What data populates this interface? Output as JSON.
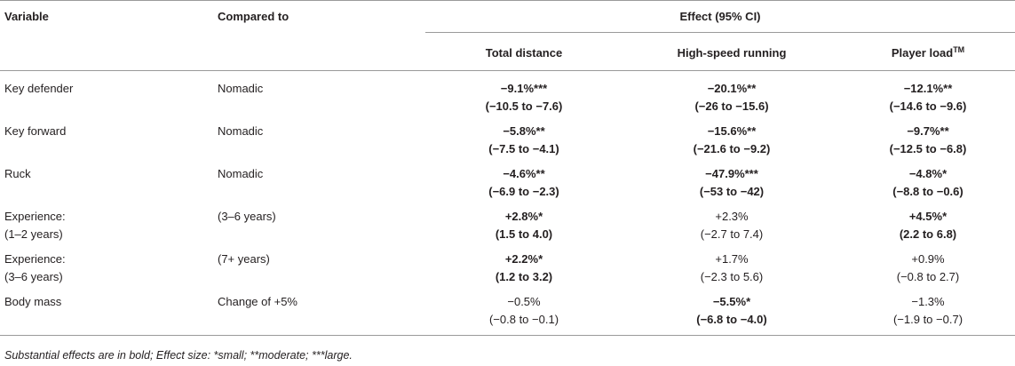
{
  "header": {
    "variable": "Variable",
    "compared_to": "Compared to",
    "effect": "Effect (95% CI)",
    "total_distance": "Total distance",
    "high_speed_running": "High-speed running",
    "player_load": "Player load",
    "player_load_sup": "TM"
  },
  "rows": [
    {
      "variable": [
        "Key defender"
      ],
      "compared": [
        "Nomadic"
      ],
      "td": {
        "effect": "−9.1%***",
        "ci": "(−10.5 to −7.6)",
        "bold": true
      },
      "hsr": {
        "effect": "−20.1%**",
        "ci": "(−26 to −15.6)",
        "bold": true
      },
      "pl": {
        "effect": "−12.1%**",
        "ci": "(−14.6 to −9.6)",
        "bold": true
      }
    },
    {
      "variable": [
        "Key forward"
      ],
      "compared": [
        "Nomadic"
      ],
      "td": {
        "effect": "−5.8%**",
        "ci": "(−7.5 to −4.1)",
        "bold": true
      },
      "hsr": {
        "effect": "−15.6%**",
        "ci": "(−21.6 to −9.2)",
        "bold": true
      },
      "pl": {
        "effect": "−9.7%**",
        "ci": "(−12.5 to −6.8)",
        "bold": true
      }
    },
    {
      "variable": [
        "Ruck"
      ],
      "compared": [
        "Nomadic"
      ],
      "td": {
        "effect": "−4.6%**",
        "ci": "(−6.9 to −2.3)",
        "bold": true
      },
      "hsr": {
        "effect": "−47.9%***",
        "ci": "(−53 to −42)",
        "bold": true
      },
      "pl": {
        "effect": "−4.8%*",
        "ci": "(−8.8 to −0.6)",
        "bold": true
      }
    },
    {
      "variable": [
        "Experience:",
        "(1–2 years)"
      ],
      "compared": [
        "(3–6 years)"
      ],
      "td": {
        "effect": "+2.8%*",
        "ci": "(1.5 to 4.0)",
        "bold": true
      },
      "hsr": {
        "effect": "+2.3%",
        "ci": "(−2.7 to 7.4)",
        "bold": false
      },
      "pl": {
        "effect": "+4.5%*",
        "ci": "(2.2 to 6.8)",
        "bold": true
      }
    },
    {
      "variable": [
        "Experience:",
        "(3–6 years)"
      ],
      "compared": [
        "(7+ years)"
      ],
      "td": {
        "effect": "+2.2%*",
        "ci": "(1.2 to 3.2)",
        "bold": true
      },
      "hsr": {
        "effect": "+1.7%",
        "ci": "(−2.3 to 5.6)",
        "bold": false
      },
      "pl": {
        "effect": "+0.9%",
        "ci": "(−0.8 to 2.7)",
        "bold": false
      }
    },
    {
      "variable": [
        "Body mass"
      ],
      "compared": [
        "Change of +5%"
      ],
      "td": {
        "effect": "−0.5%",
        "ci": "(−0.8 to −0.1)",
        "bold": false
      },
      "hsr": {
        "effect": "−5.5%*",
        "ci": "(−6.8 to −4.0)",
        "bold": true
      },
      "pl": {
        "effect": "−1.3%",
        "ci": "(−1.9 to −0.7)",
        "bold": false
      }
    }
  ],
  "footnote": "Substantial effects are in bold; Effect size: *small; **moderate; ***large."
}
